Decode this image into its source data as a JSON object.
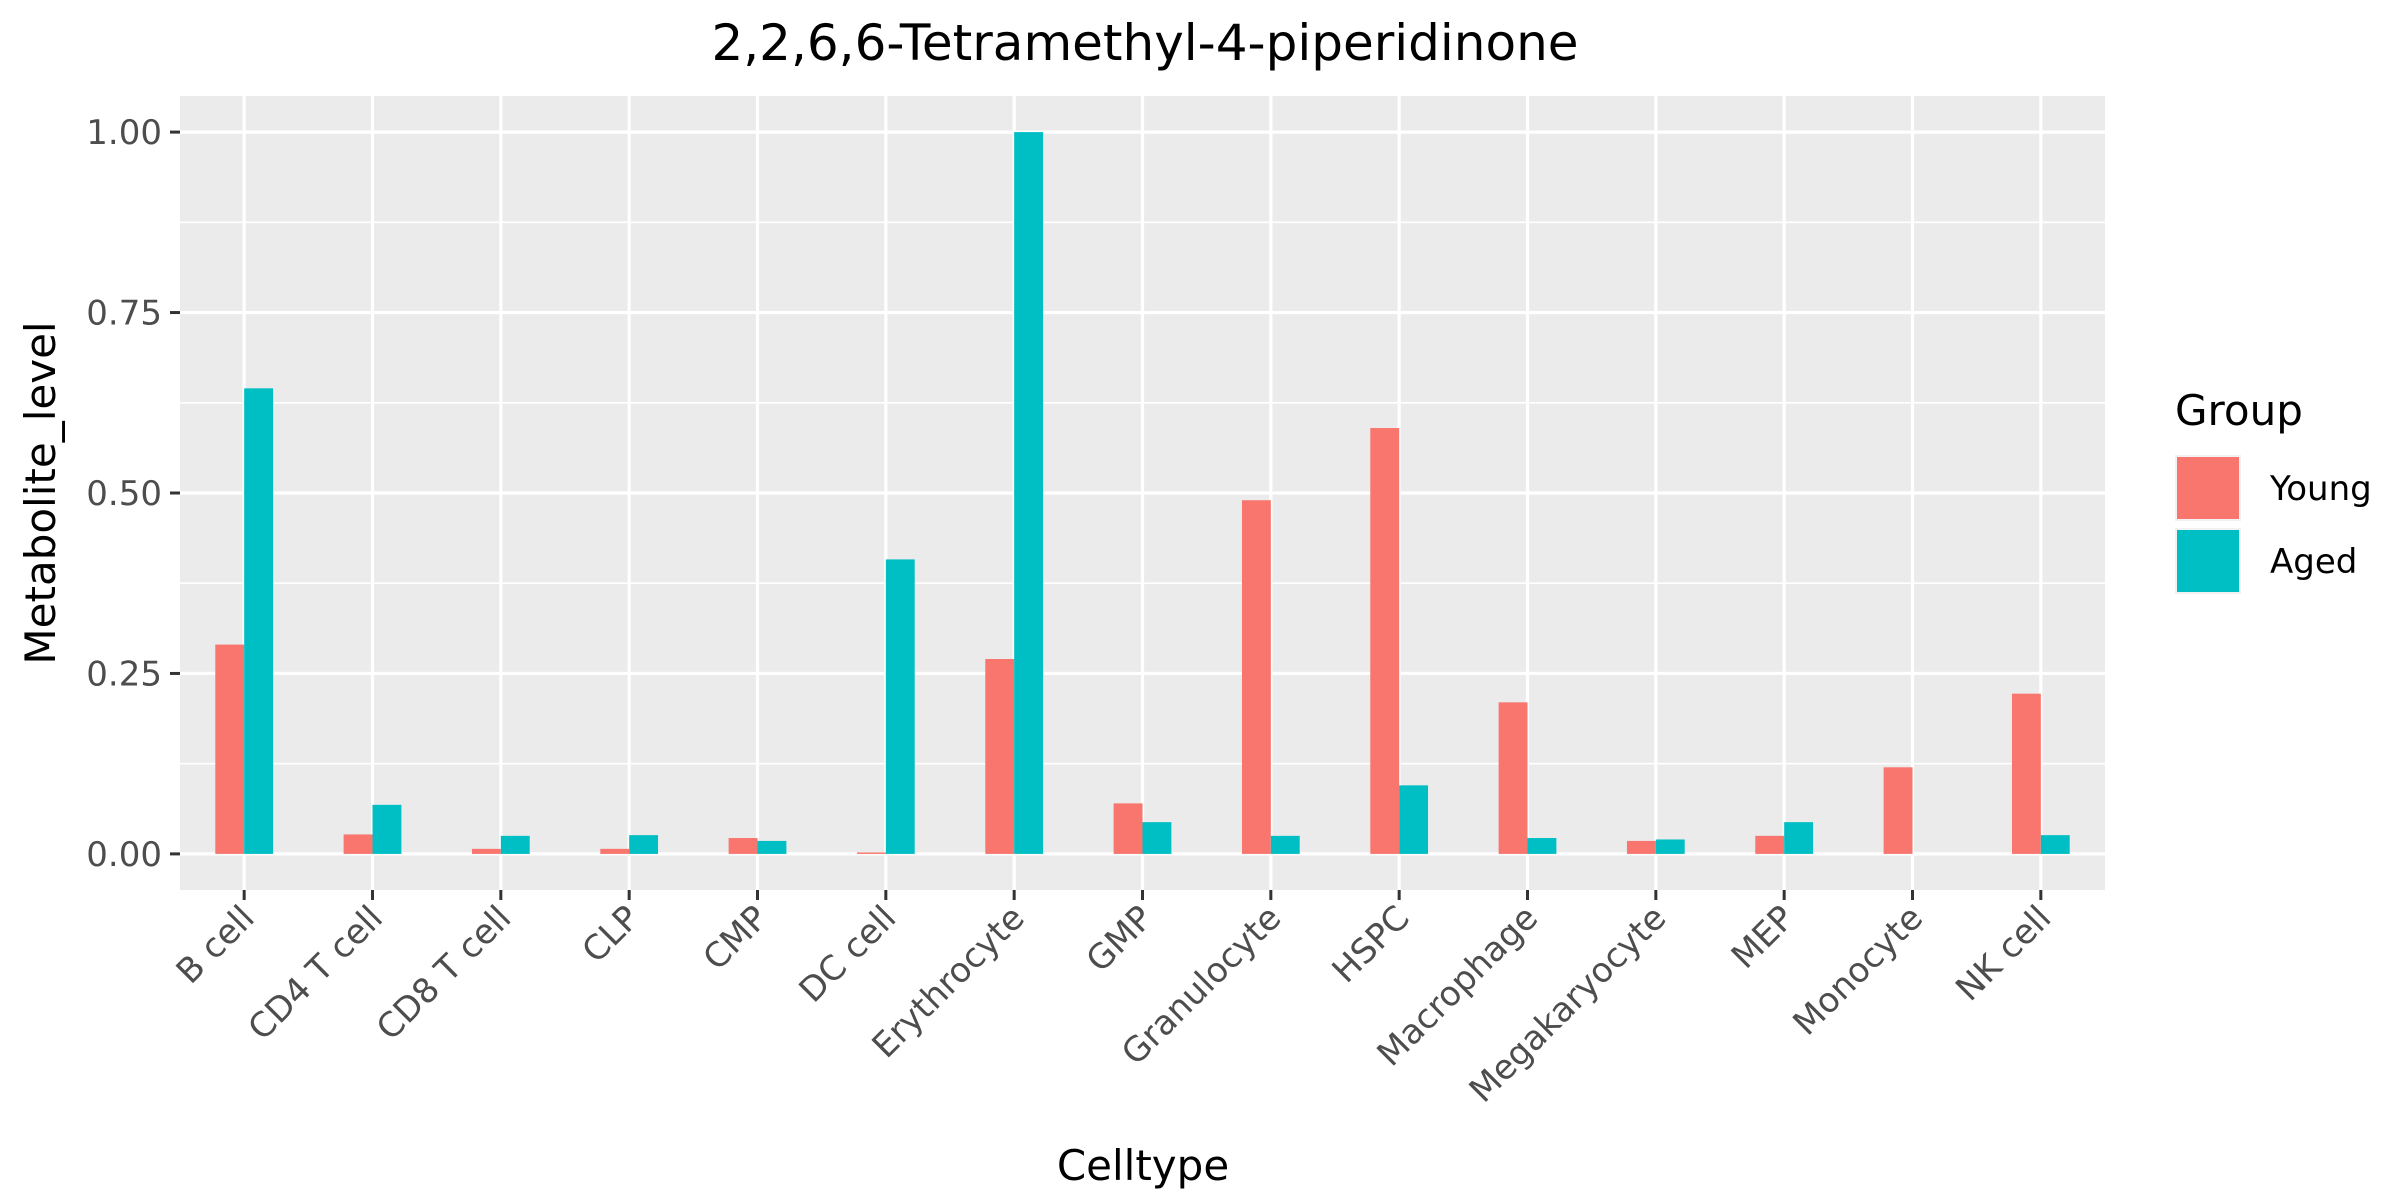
{
  "chart_data": {
    "type": "bar",
    "title": "2,2,6,6-Tetramethyl-4-piperidinone",
    "xlabel": "Celltype",
    "ylabel": "Metabolite_level",
    "categories": [
      "B cell",
      "CD4 T cell",
      "CD8 T cell",
      "CLP",
      "CMP",
      "DC cell",
      "Erythrocyte",
      "GMP",
      "Granulocyte",
      "HSPC",
      "Macrophage",
      "Megakaryocyte",
      "MEP",
      "Monocyte",
      "NK cell"
    ],
    "series": [
      {
        "name": "Young",
        "color": "#F8766D",
        "values": [
          0.29,
          0.027,
          0.007,
          0.007,
          0.022,
          0.002,
          0.27,
          0.07,
          0.49,
          0.59,
          0.21,
          0.018,
          0.025,
          0.12,
          0.222
        ]
      },
      {
        "name": "Aged",
        "color": "#00BFC4",
        "values": [
          0.645,
          0.068,
          0.025,
          0.026,
          0.018,
          0.408,
          1.0,
          0.044,
          0.025,
          0.095,
          0.022,
          0.02,
          0.044,
          null,
          0.026
        ]
      }
    ],
    "ylim": [
      -0.05,
      1.05
    ],
    "yticks": [
      0.0,
      0.25,
      0.5,
      0.75,
      1.0
    ],
    "ytick_labels": [
      "0.00",
      "0.25",
      "0.50",
      "0.75",
      "1.00"
    ],
    "grid": true,
    "legend": {
      "title": "Group",
      "position": "right"
    }
  }
}
